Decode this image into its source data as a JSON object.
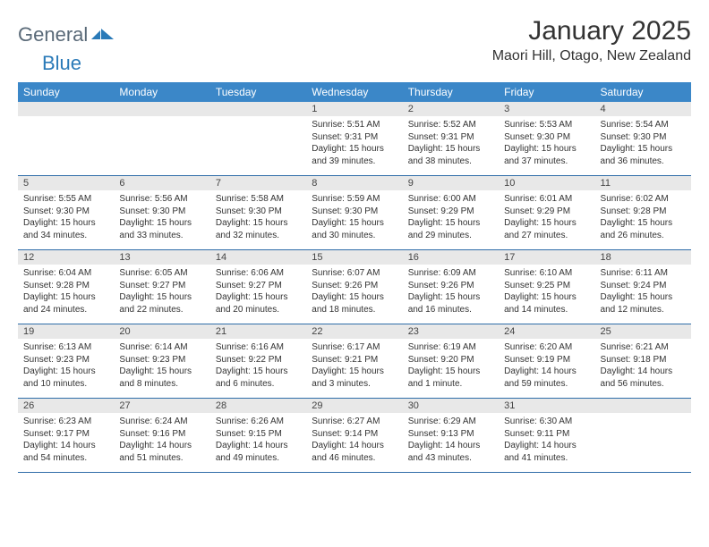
{
  "brand": {
    "general": "General",
    "blue": "Blue"
  },
  "title": "January 2025",
  "subtitle": "Maori Hill, Otago, New Zealand",
  "dow": [
    "Sunday",
    "Monday",
    "Tuesday",
    "Wednesday",
    "Thursday",
    "Friday",
    "Saturday"
  ],
  "colors": {
    "header_bg": "#3b87c8",
    "daynum_bg": "#e8e8e8",
    "row_border": "#2f6da8",
    "logo_gray": "#5a6a78",
    "logo_blue": "#2a7ab8"
  },
  "weeks": [
    [
      null,
      null,
      null,
      {
        "n": "1",
        "sr": "5:51 AM",
        "ss": "9:31 PM",
        "dl": "15 hours and 39 minutes."
      },
      {
        "n": "2",
        "sr": "5:52 AM",
        "ss": "9:31 PM",
        "dl": "15 hours and 38 minutes."
      },
      {
        "n": "3",
        "sr": "5:53 AM",
        "ss": "9:30 PM",
        "dl": "15 hours and 37 minutes."
      },
      {
        "n": "4",
        "sr": "5:54 AM",
        "ss": "9:30 PM",
        "dl": "15 hours and 36 minutes."
      }
    ],
    [
      {
        "n": "5",
        "sr": "5:55 AM",
        "ss": "9:30 PM",
        "dl": "15 hours and 34 minutes."
      },
      {
        "n": "6",
        "sr": "5:56 AM",
        "ss": "9:30 PM",
        "dl": "15 hours and 33 minutes."
      },
      {
        "n": "7",
        "sr": "5:58 AM",
        "ss": "9:30 PM",
        "dl": "15 hours and 32 minutes."
      },
      {
        "n": "8",
        "sr": "5:59 AM",
        "ss": "9:30 PM",
        "dl": "15 hours and 30 minutes."
      },
      {
        "n": "9",
        "sr": "6:00 AM",
        "ss": "9:29 PM",
        "dl": "15 hours and 29 minutes."
      },
      {
        "n": "10",
        "sr": "6:01 AM",
        "ss": "9:29 PM",
        "dl": "15 hours and 27 minutes."
      },
      {
        "n": "11",
        "sr": "6:02 AM",
        "ss": "9:28 PM",
        "dl": "15 hours and 26 minutes."
      }
    ],
    [
      {
        "n": "12",
        "sr": "6:04 AM",
        "ss": "9:28 PM",
        "dl": "15 hours and 24 minutes."
      },
      {
        "n": "13",
        "sr": "6:05 AM",
        "ss": "9:27 PM",
        "dl": "15 hours and 22 minutes."
      },
      {
        "n": "14",
        "sr": "6:06 AM",
        "ss": "9:27 PM",
        "dl": "15 hours and 20 minutes."
      },
      {
        "n": "15",
        "sr": "6:07 AM",
        "ss": "9:26 PM",
        "dl": "15 hours and 18 minutes."
      },
      {
        "n": "16",
        "sr": "6:09 AM",
        "ss": "9:26 PM",
        "dl": "15 hours and 16 minutes."
      },
      {
        "n": "17",
        "sr": "6:10 AM",
        "ss": "9:25 PM",
        "dl": "15 hours and 14 minutes."
      },
      {
        "n": "18",
        "sr": "6:11 AM",
        "ss": "9:24 PM",
        "dl": "15 hours and 12 minutes."
      }
    ],
    [
      {
        "n": "19",
        "sr": "6:13 AM",
        "ss": "9:23 PM",
        "dl": "15 hours and 10 minutes."
      },
      {
        "n": "20",
        "sr": "6:14 AM",
        "ss": "9:23 PM",
        "dl": "15 hours and 8 minutes."
      },
      {
        "n": "21",
        "sr": "6:16 AM",
        "ss": "9:22 PM",
        "dl": "15 hours and 6 minutes."
      },
      {
        "n": "22",
        "sr": "6:17 AM",
        "ss": "9:21 PM",
        "dl": "15 hours and 3 minutes."
      },
      {
        "n": "23",
        "sr": "6:19 AM",
        "ss": "9:20 PM",
        "dl": "15 hours and 1 minute."
      },
      {
        "n": "24",
        "sr": "6:20 AM",
        "ss": "9:19 PM",
        "dl": "14 hours and 59 minutes."
      },
      {
        "n": "25",
        "sr": "6:21 AM",
        "ss": "9:18 PM",
        "dl": "14 hours and 56 minutes."
      }
    ],
    [
      {
        "n": "26",
        "sr": "6:23 AM",
        "ss": "9:17 PM",
        "dl": "14 hours and 54 minutes."
      },
      {
        "n": "27",
        "sr": "6:24 AM",
        "ss": "9:16 PM",
        "dl": "14 hours and 51 minutes."
      },
      {
        "n": "28",
        "sr": "6:26 AM",
        "ss": "9:15 PM",
        "dl": "14 hours and 49 minutes."
      },
      {
        "n": "29",
        "sr": "6:27 AM",
        "ss": "9:14 PM",
        "dl": "14 hours and 46 minutes."
      },
      {
        "n": "30",
        "sr": "6:29 AM",
        "ss": "9:13 PM",
        "dl": "14 hours and 43 minutes."
      },
      {
        "n": "31",
        "sr": "6:30 AM",
        "ss": "9:11 PM",
        "dl": "14 hours and 41 minutes."
      },
      null
    ]
  ],
  "labels": {
    "sunrise": "Sunrise:",
    "sunset": "Sunset:",
    "daylight": "Daylight:"
  }
}
